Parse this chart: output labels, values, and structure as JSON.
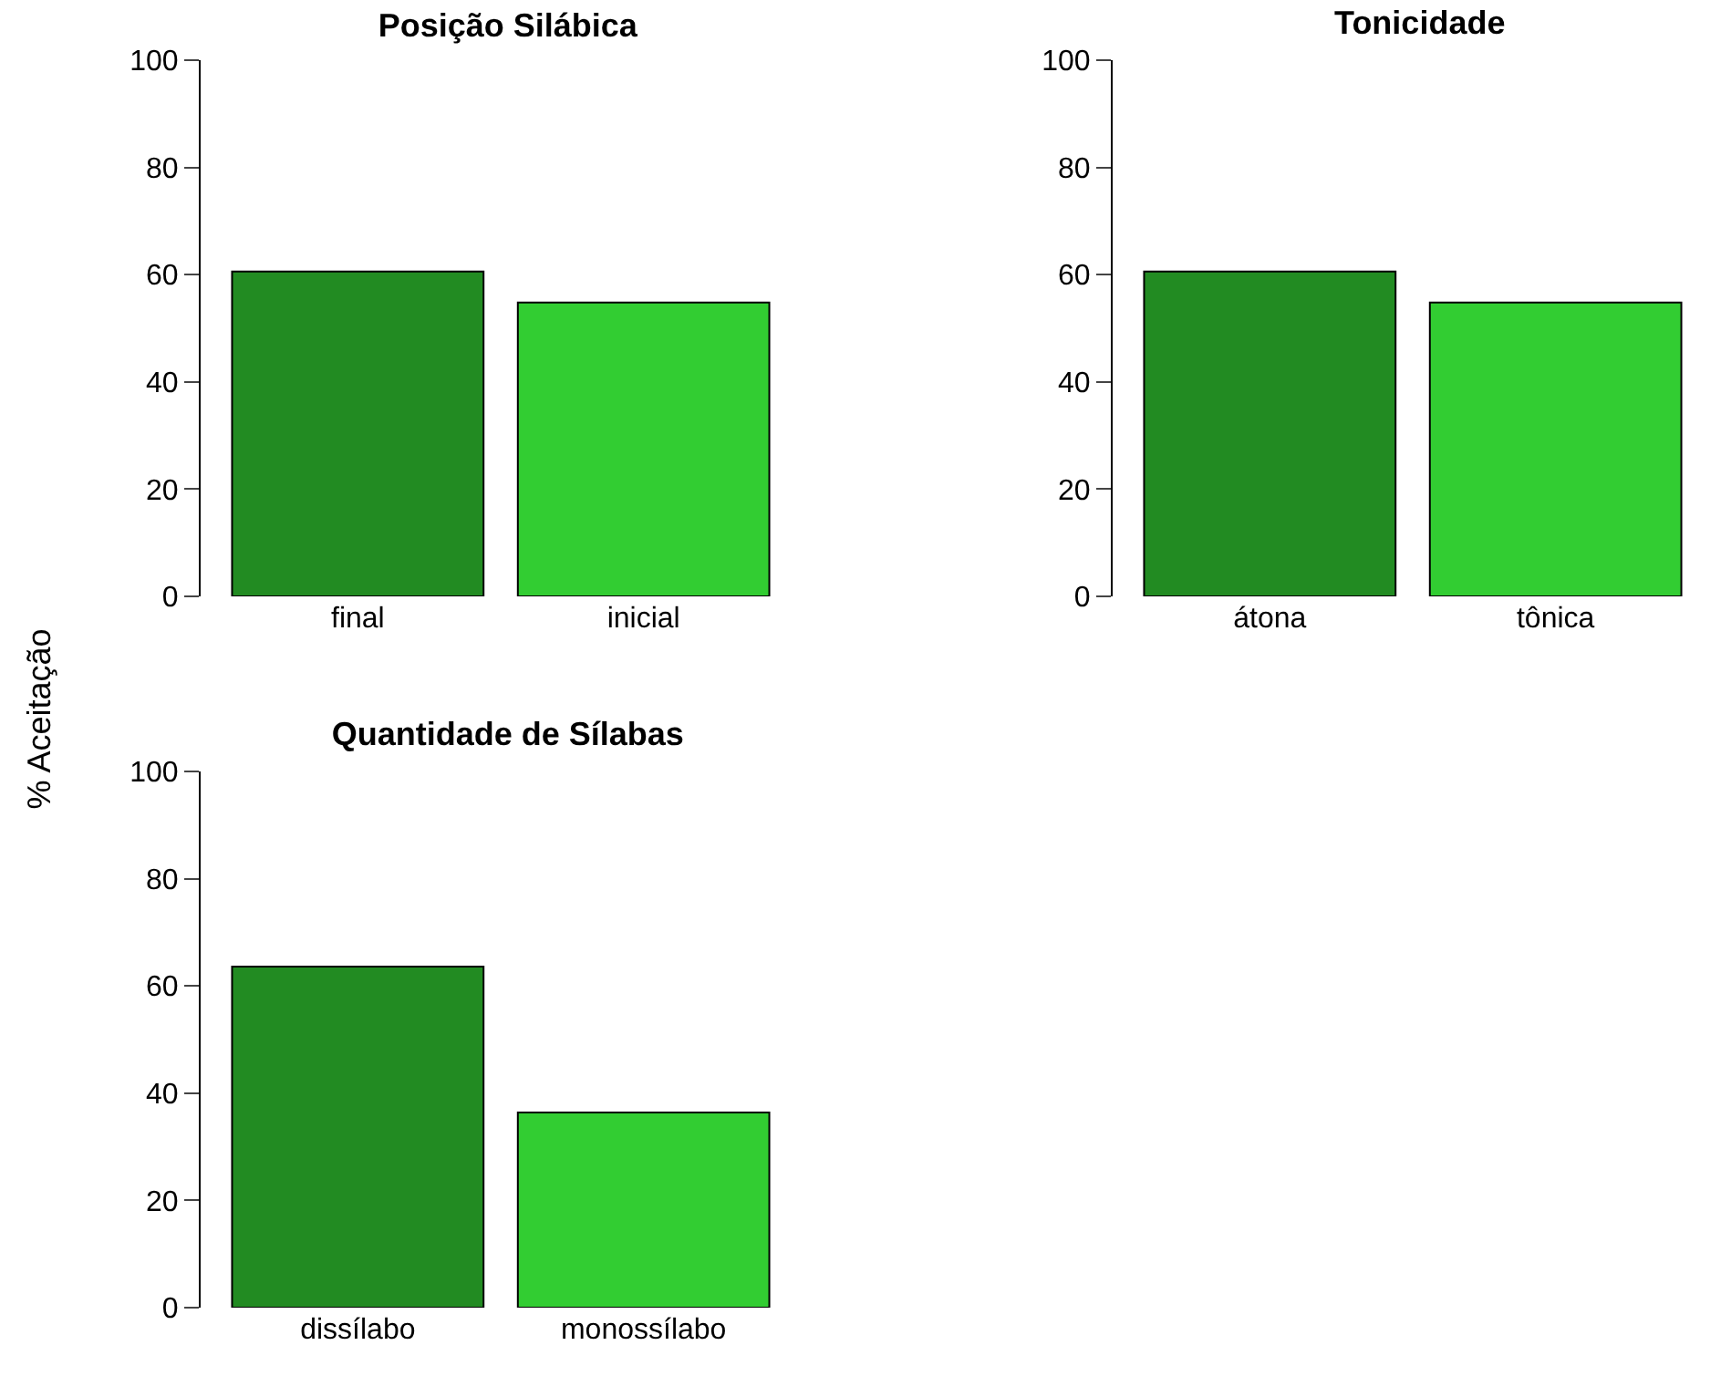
{
  "chart_data": [
    {
      "type": "bar",
      "title": "Posição Silábica",
      "ylabel": "% Aceitação",
      "categories": [
        "final",
        "inicial"
      ],
      "values": [
        60.6,
        54.8
      ],
      "colors": [
        "#228b22",
        "#32cd32"
      ],
      "ylim": [
        0,
        100
      ],
      "yticks": [
        0,
        20,
        40,
        60,
        80,
        100
      ]
    },
    {
      "type": "bar",
      "title": "Tonicidade",
      "categories": [
        "átona",
        "tônica"
      ],
      "values": [
        60.6,
        54.8
      ],
      "colors": [
        "#228b22",
        "#32cd32"
      ],
      "ylim": [
        0,
        100
      ],
      "yticks": [
        0,
        20,
        40,
        60,
        80,
        100
      ]
    },
    {
      "type": "bar",
      "title": "Quantidade de Sílabas",
      "categories": [
        "dissílabo",
        "monossílabo"
      ],
      "values": [
        63.6,
        36.4
      ],
      "colors": [
        "#228b22",
        "#32cd32"
      ],
      "ylim": [
        0,
        100
      ],
      "yticks": [
        0,
        20,
        40,
        60,
        80,
        100
      ]
    }
  ]
}
